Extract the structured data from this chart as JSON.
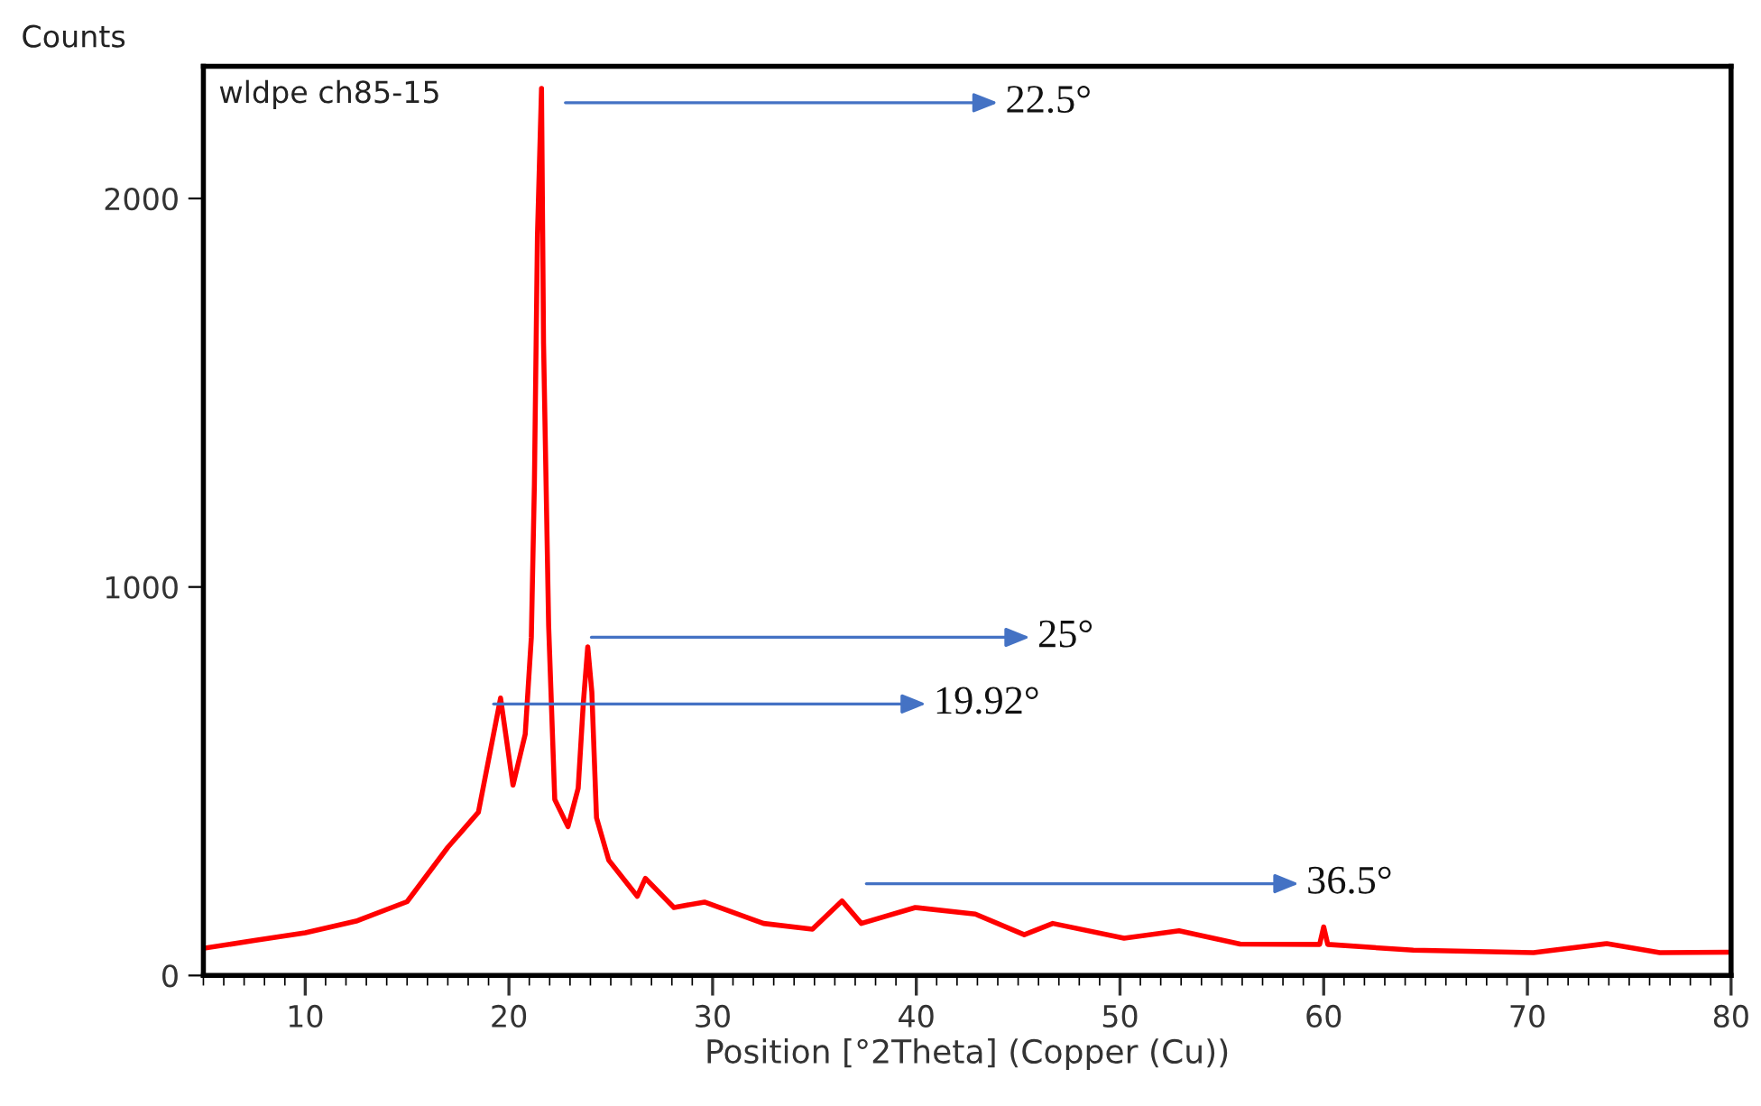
{
  "chart_data": {
    "type": "line",
    "xlabel": "Position [°2Theta] (Copper (Cu))",
    "ylabel": "Counts",
    "xlim": [
      5,
      80
    ],
    "xticks": [
      10,
      20,
      30,
      40,
      50,
      60,
      70,
      80
    ],
    "ylim": [
      0,
      2340
    ],
    "yticks": [
      0,
      1000,
      2000
    ],
    "grid": false,
    "marker": "none",
    "line_style": "solid",
    "series": [
      {
        "color": "#ff0000",
        "x": [
          5,
          7.5,
          10,
          12.5,
          15,
          17,
          18.5,
          19.59,
          20.2,
          20.8,
          21.1,
          21.25,
          21.4,
          21.6,
          21.7,
          21.95,
          22.25,
          22.9,
          23.4,
          23.65,
          23.87,
          24.07,
          24.3,
          24.9,
          26.3,
          26.7,
          28.1,
          29.6,
          32.5,
          34.9,
          36.35,
          37.3,
          39.95,
          42.9,
          45.3,
          46.7,
          50.2,
          52.9,
          55.9,
          59.8,
          60,
          60.2,
          64.4,
          70.3,
          73.9,
          76.5,
          80
        ],
        "values": [
          70,
          90,
          110,
          140,
          190,
          330,
          420,
          714,
          490,
          621,
          870,
          1264,
          1904,
          2283,
          1626,
          900,
          453,
          383,
          482,
          699,
          846,
          730,
          406,
          297,
          204,
          250,
          175,
          189,
          134,
          119,
          192,
          134,
          175,
          158,
          105,
          134,
          96,
          115,
          81,
          80,
          125,
          80,
          65,
          59,
          82,
          59,
          60
        ]
      }
    ],
    "annotations": [
      "wldpe ch85-15",
      "22.5°",
      "25°",
      {
        "text": "19.92°",
        "x": 19.25,
        "y": 699
      },
      "36.5°"
    ]
  }
}
